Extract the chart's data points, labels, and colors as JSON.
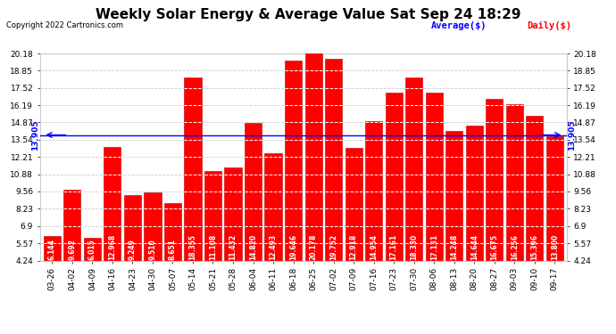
{
  "title": "Weekly Solar Energy & Average Value Sat Sep 24 18:29",
  "copyright": "Copyright 2022 Cartronics.com",
  "categories": [
    "03-26",
    "04-02",
    "04-09",
    "04-16",
    "04-23",
    "04-30",
    "05-07",
    "05-14",
    "05-21",
    "05-28",
    "06-04",
    "06-11",
    "06-18",
    "06-25",
    "07-02",
    "07-09",
    "07-16",
    "07-23",
    "07-30",
    "08-06",
    "08-13",
    "08-20",
    "08-27",
    "09-03",
    "09-10",
    "09-17"
  ],
  "values": [
    6.144,
    9.692,
    6.015,
    12.968,
    9.249,
    9.51,
    8.651,
    18.355,
    11.108,
    11.432,
    14.82,
    12.493,
    19.646,
    20.178,
    19.752,
    12.918,
    14.954,
    17.161,
    18.33,
    17.131,
    14.248,
    14.644,
    16.675,
    16.256,
    15.396,
    13.8
  ],
  "average": 13.905,
  "bar_color": "#ff0000",
  "bar_edge_color": "#bb0000",
  "average_line_color": "#0000ff",
  "background_color": "#ffffff",
  "ylim_min": 4.24,
  "ylim_max": 20.18,
  "yticks": [
    4.24,
    5.57,
    6.9,
    8.23,
    9.56,
    10.88,
    12.21,
    13.54,
    14.87,
    16.19,
    17.52,
    18.85,
    20.18
  ],
  "average_label": "Average($)",
  "daily_label": "Daily($)",
  "average_label_color": "#0000ff",
  "daily_label_color": "#ff0000",
  "title_fontsize": 11,
  "tick_fontsize": 6.5,
  "value_fontsize": 5.5
}
